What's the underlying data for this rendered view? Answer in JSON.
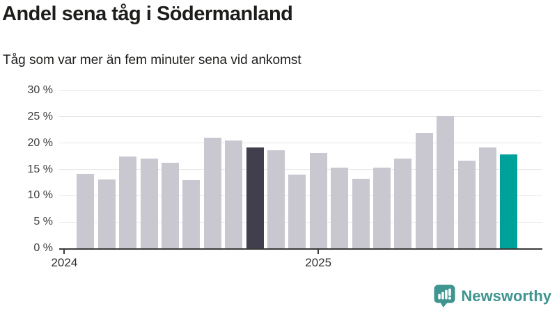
{
  "header": {
    "title": "Andel sena tåg i Södermanland",
    "subtitle": "Tåg som var mer än fem minuter sena vid ankomst"
  },
  "footer": {
    "brand": "Newsworthy",
    "logo_icon": "newsworthy-badge-icon"
  },
  "colors": {
    "bar_default": "#c9c8d1",
    "bar_highlight_dark": "#413f4d",
    "bar_latest_teal": "#00a19a",
    "grid": "#e6e6e8",
    "axis": "#3a3a3a",
    "text": "#1d1d1b",
    "brand_teal": "#3f958f"
  },
  "chart_data": {
    "type": "bar",
    "title": "Andel sena tåg i Södermanland",
    "subtitle": "Tåg som var mer än fem minuter sena vid ankomst",
    "x": [
      "2024-02",
      "2024-03",
      "2024-04",
      "2024-05",
      "2024-06",
      "2024-07",
      "2024-08",
      "2024-09",
      "2024-10",
      "2024-11",
      "2024-12",
      "2025-01",
      "2025-02",
      "2025-03",
      "2025-04",
      "2025-05",
      "2025-06",
      "2025-07",
      "2025-08",
      "2025-09",
      "2025-10"
    ],
    "values": [
      14.1,
      13.1,
      17.5,
      17.1,
      16.3,
      12.9,
      21.0,
      20.5,
      19.1,
      18.6,
      14.0,
      18.1,
      15.3,
      13.2,
      15.3,
      17.1,
      22.0,
      25.1,
      16.7,
      19.1,
      17.9
    ],
    "unit": "%",
    "highlight_index": 8,
    "latest_index": 20,
    "ylim": [
      0,
      30
    ],
    "y_ticks": [
      0,
      5,
      10,
      15,
      20,
      25,
      30
    ],
    "y_tick_labels": [
      "0 %",
      "5 %",
      "10 %",
      "15 %",
      "20 %",
      "25 %",
      "30 %"
    ],
    "x_ticks": [
      {
        "label": "2024",
        "month_index": 0
      },
      {
        "label": "2025",
        "month_index": 12
      }
    ],
    "grid": true,
    "legend": "none"
  }
}
